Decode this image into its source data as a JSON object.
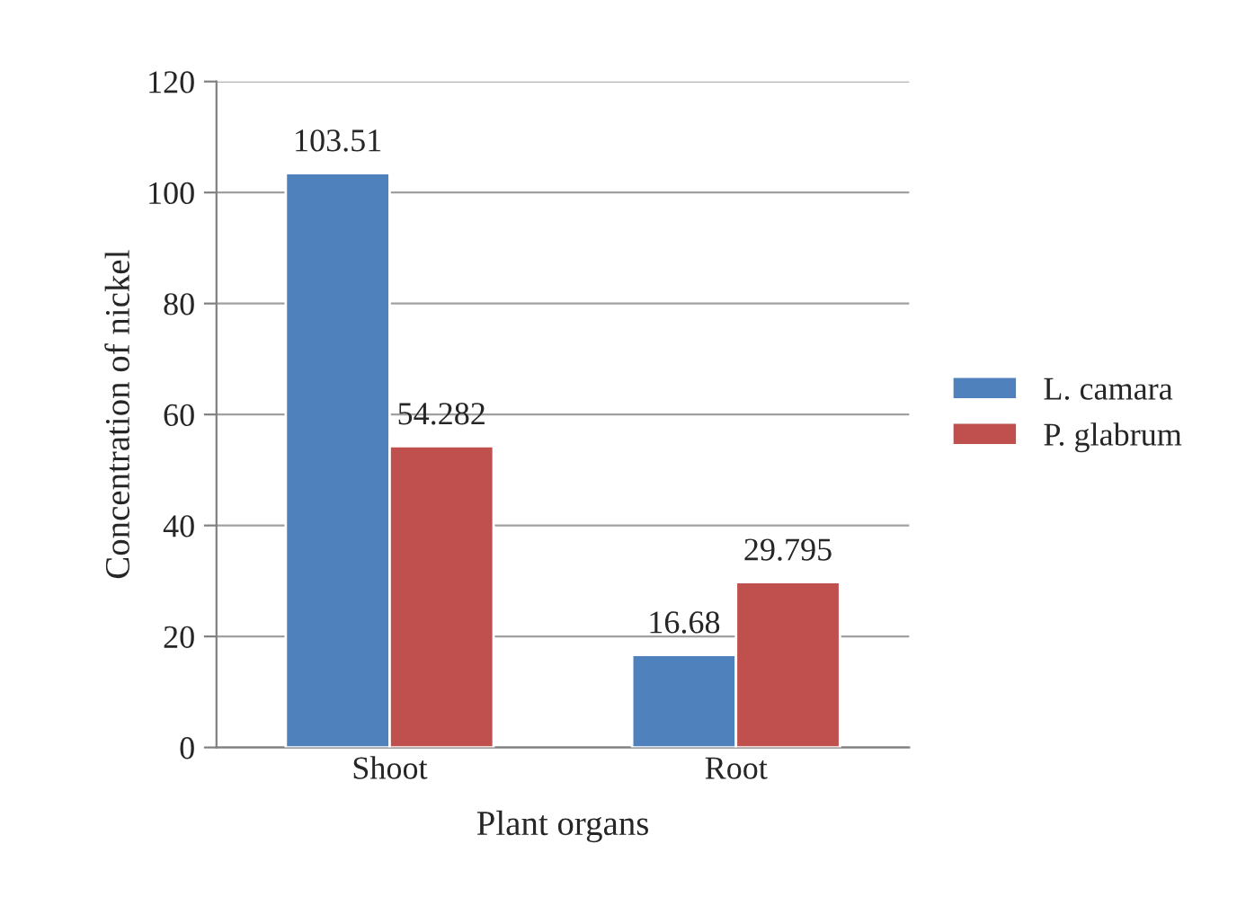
{
  "chart_data": {
    "type": "bar",
    "xlabel": "Plant organs",
    "ylabel": "Concentration of nickel",
    "categories": [
      "Shoot",
      "Root"
    ],
    "series": [
      {
        "name": "L. camara",
        "color": "#4f81bd",
        "values": [
          103.51,
          16.68
        ]
      },
      {
        "name": "P. glabrum",
        "color": "#c0504d",
        "values": [
          54.282,
          29.795
        ]
      }
    ],
    "ylim": [
      0,
      120
    ],
    "yticks": [
      0,
      20,
      40,
      60,
      80,
      100,
      120
    ],
    "grid": "y",
    "legend": "right",
    "data_labels": true
  }
}
